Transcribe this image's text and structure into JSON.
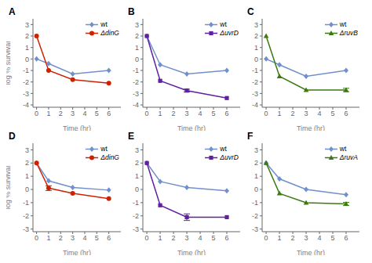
{
  "chart_data": [
    {
      "type": "line",
      "title": "A",
      "xlabel": "Time (hr)",
      "ylabel": "log % survival",
      "x": [
        0,
        1,
        3,
        6
      ],
      "xlim": [
        -0.3,
        7.0
      ],
      "xticks": [
        0,
        1,
        2,
        3,
        4,
        5,
        6
      ],
      "ylim": [
        -4.2,
        3.5
      ],
      "yticks": [
        -4,
        -3,
        -2,
        -1,
        0,
        1,
        2,
        3
      ],
      "legend": "upper right",
      "series": [
        {
          "name": "wt",
          "color": "#7090cc",
          "marker": "diamond",
          "values": [
            0.0,
            -0.4,
            -1.3,
            -1.0
          ]
        },
        {
          "name": "ΔdinG",
          "color": "#cc2200",
          "marker": "circle",
          "values": [
            2.0,
            -1.0,
            -1.8,
            -2.1
          ]
        }
      ]
    },
    {
      "type": "line",
      "title": "B",
      "xlabel": "Time (hr)",
      "x": [
        0,
        1,
        3,
        6
      ],
      "xlim": [
        -0.3,
        7.0
      ],
      "xticks": [
        0,
        1,
        2,
        3,
        4,
        5,
        6
      ],
      "ylim": [
        -4.2,
        3.5
      ],
      "yticks": [
        -4,
        -3,
        -2,
        -1,
        0,
        1,
        2,
        3
      ],
      "legend": "upper right",
      "series": [
        {
          "name": "wt",
          "color": "#7090cc",
          "marker": "diamond",
          "values": [
            2.0,
            -0.5,
            -1.3,
            -1.0
          ]
        },
        {
          "name": "ΔuvrD",
          "color": "#6020a0",
          "marker": "square",
          "values": [
            2.0,
            -1.9,
            -2.75,
            -3.4
          ],
          "errors": [
            null,
            null,
            0.12,
            null
          ]
        }
      ]
    },
    {
      "type": "line",
      "title": "C",
      "xlabel": "Time (hr)",
      "x": [
        0,
        1,
        3,
        6
      ],
      "xlim": [
        -0.3,
        7.0
      ],
      "xticks": [
        0,
        1,
        2,
        3,
        4,
        5,
        6
      ],
      "ylim": [
        -4.2,
        3.5
      ],
      "yticks": [
        -4,
        -3,
        -2,
        -1,
        0,
        1,
        2,
        3
      ],
      "legend": "upper right",
      "series": [
        {
          "name": "wt",
          "color": "#7090cc",
          "marker": "diamond",
          "values": [
            0.0,
            -0.5,
            -1.5,
            -1.0
          ]
        },
        {
          "name": "ΔruvB",
          "color": "#3a7a10",
          "marker": "triangle",
          "values": [
            2.0,
            -1.5,
            -2.7,
            -2.7
          ],
          "errors": [
            null,
            null,
            null,
            0.15
          ]
        }
      ]
    },
    {
      "type": "line",
      "title": "D",
      "xlabel": "Time (hr)",
      "ylabel": "log % survival",
      "x": [
        0,
        1,
        3,
        6
      ],
      "xlim": [
        -0.3,
        7.0
      ],
      "xticks": [
        0,
        1,
        2,
        3,
        4,
        5,
        6
      ],
      "ylim": [
        -3.2,
        3.5
      ],
      "yticks": [
        -3,
        -2,
        -1,
        0,
        1,
        2,
        3
      ],
      "legend": "upper right",
      "series": [
        {
          "name": "wt",
          "color": "#7090cc",
          "marker": "diamond",
          "values": [
            2.0,
            0.65,
            0.15,
            -0.05
          ]
        },
        {
          "name": "ΔdinG",
          "color": "#cc2200",
          "marker": "circle",
          "values": [
            2.0,
            0.1,
            -0.3,
            -0.7
          ],
          "errors": [
            null,
            0.18,
            null,
            null
          ]
        }
      ]
    },
    {
      "type": "line",
      "title": "E",
      "xlabel": "Time (hr)",
      "x": [
        0,
        1,
        3,
        6
      ],
      "xlim": [
        -0.3,
        7.0
      ],
      "xticks": [
        0,
        1,
        2,
        3,
        4,
        5,
        6
      ],
      "ylim": [
        -3.2,
        3.5
      ],
      "yticks": [
        -3,
        -2,
        -1,
        0,
        1,
        2,
        3
      ],
      "legend": "upper right",
      "series": [
        {
          "name": "wt",
          "color": "#7090cc",
          "marker": "diamond",
          "values": [
            2.0,
            0.6,
            0.15,
            -0.1
          ]
        },
        {
          "name": "ΔuvrD",
          "color": "#6020a0",
          "marker": "square",
          "values": [
            2.0,
            -1.2,
            -2.1,
            -2.1
          ],
          "errors": [
            null,
            null,
            0.25,
            null
          ]
        }
      ]
    },
    {
      "type": "line",
      "title": "F",
      "xlabel": "Time (hr)",
      "x": [
        0,
        1,
        3,
        6
      ],
      "xlim": [
        -0.3,
        7.0
      ],
      "xticks": [
        0,
        1,
        2,
        3,
        4,
        5,
        6
      ],
      "ylim": [
        -3.2,
        3.5
      ],
      "yticks": [
        -3,
        -2,
        -1,
        0,
        1,
        2,
        3
      ],
      "legend": "upper right",
      "series": [
        {
          "name": "wt",
          "color": "#7090cc",
          "marker": "diamond",
          "values": [
            2.0,
            0.8,
            0.0,
            -0.4
          ]
        },
        {
          "name": "ΔruvA",
          "color": "#3a7a10",
          "marker": "triangle",
          "values": [
            2.0,
            -0.3,
            -1.0,
            -1.1
          ],
          "errors": [
            null,
            null,
            null,
            0.12
          ]
        }
      ]
    }
  ]
}
